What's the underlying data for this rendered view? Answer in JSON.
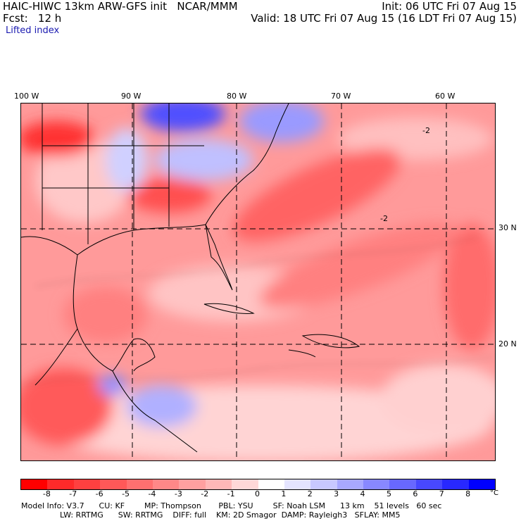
{
  "header": {
    "model_line": "HAIC-HIWC 13km ARW-GFS init   NCAR/MMM",
    "init_line": "Init: 06 UTC Fri 07 Aug 15",
    "fcst_line": "Fcst:   12 h",
    "valid_line": "Valid: 18 UTC Fri 07 Aug 15 (16 LDT Fri 07 Aug 15)",
    "field": "Lifted index"
  },
  "map": {
    "lon_labels": [
      "100 W",
      "90 W",
      "80 W",
      "70 W",
      "60 W"
    ],
    "lat_labels": [
      "30 N",
      "20 N"
    ],
    "contour_label": "-2"
  },
  "colorbar": {
    "ticks": [
      "-8",
      "-7",
      "-6",
      "-5",
      "-4",
      "-3",
      "-2",
      "-1",
      "0",
      "1",
      "2",
      "3",
      "4",
      "5",
      "6",
      "7",
      "8"
    ],
    "unit": "°C",
    "colors": [
      "#ff0000",
      "#ff2a2a",
      "#ff4040",
      "#ff5858",
      "#ff7070",
      "#ff8888",
      "#ffa0a0",
      "#ffb8b8",
      "#ffd8d8",
      "#ffffff",
      "#e4e4ff",
      "#c8c8ff",
      "#a8a8ff",
      "#8888ff",
      "#6868ff",
      "#4848ff",
      "#2828ff",
      "#0000ff"
    ]
  },
  "model_info": {
    "line1": "Model Info: V3.7      CU: KF        MP: Thompson       PBL: YSU        SF: Noah LSM      13 km    51 levels   60 sec",
    "line2": "LW: RRTMG      SW: RRTMG    DIFF: full    KM: 2D Smagor  DAMP: Rayleigh3   SFLAY: MM5"
  }
}
